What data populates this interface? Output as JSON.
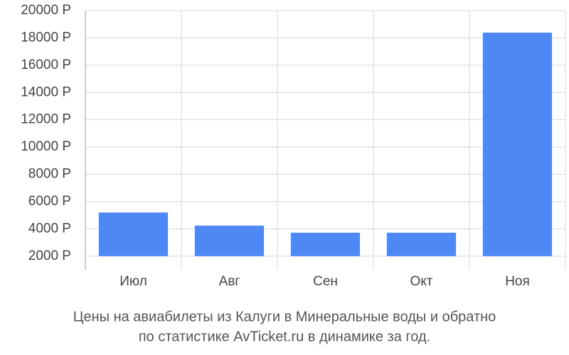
{
  "chart_data": {
    "type": "bar",
    "title": [
      "Цены на авиабилеты из Калуги в Минеральные воды и обратно",
      "по статистике AvTicket.ru в динамике за год."
    ],
    "categories": [
      "Июл",
      "Авг",
      "Сен",
      "Окт",
      "Ноя"
    ],
    "values": [
      5200,
      4240,
      3720,
      3720,
      18390
    ],
    "color": "#4d88f5",
    "ylim": [
      1000,
      20000
    ],
    "yticks": [
      {
        "value": 2000,
        "label": "2000 Р"
      },
      {
        "value": 4000,
        "label": "4000 Р"
      },
      {
        "value": 6000,
        "label": "6000 Р"
      },
      {
        "value": 8000,
        "label": "8000 Р"
      },
      {
        "value": 10000,
        "label": "10000 Р"
      },
      {
        "value": 12000,
        "label": "12000 Р"
      },
      {
        "value": 14000,
        "label": "14000 Р"
      },
      {
        "value": 16000,
        "label": "16000 Р"
      },
      {
        "value": 18000,
        "label": "18000 Р"
      },
      {
        "value": 20000,
        "label": "20000 Р"
      }
    ],
    "grid": true
  }
}
